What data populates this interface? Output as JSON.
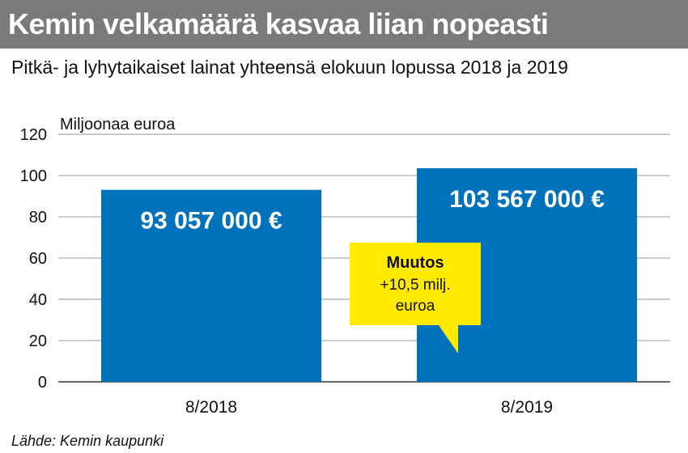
{
  "header": {
    "title": "Kemin velkamäärä kasvaa liian nopeasti",
    "subtitle": "Pitkä- ja lyhytaikaiset lainat yhteensä elokuun lopussa 2018 ja 2019"
  },
  "source": "Lähde: Kemin kaupunki",
  "colors": {
    "header_band": "#7a7a7a",
    "bar": "#0072bb",
    "callout": "#ffea00",
    "grid": "#9a9a9a"
  },
  "chart_data": {
    "type": "bar",
    "title": "Kemin velkamäärä kasvaa liian nopeasti",
    "subtitle": "Pitkä- ja lyhytaikaiset lainat yhteensä elokuun lopussa 2018 ja 2019",
    "ylabel": "Miljoonaa euroa",
    "xlabel": "",
    "ylim": [
      0,
      120
    ],
    "yticks": [
      0,
      20,
      40,
      60,
      80,
      100,
      120
    ],
    "grid": true,
    "categories": [
      "8/2018",
      "8/2019"
    ],
    "values": [
      93.057,
      103.567
    ],
    "value_labels": [
      "93 057 000 €",
      "103 567 000 €"
    ],
    "annotation": {
      "title": "Muutos",
      "lines": [
        "+10,5 milj.",
        "euroa"
      ],
      "points_to": "8/2019"
    }
  }
}
